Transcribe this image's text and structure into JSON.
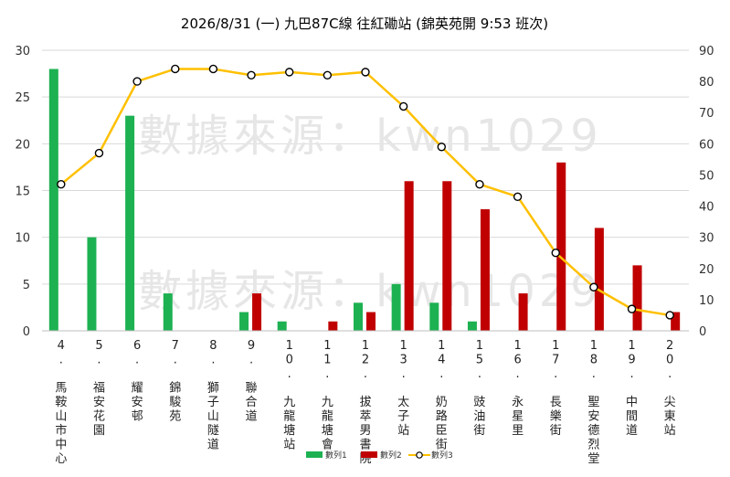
{
  "chart_data": {
    "type": "bar",
    "title": "2026/8/31 (一) 九巴87C線 往紅磡站 (錦英苑開 9:53 班次)",
    "watermark": "數據來源：kwn1029",
    "categories": [
      "4. 馬鞍山市中心",
      "5. 福安花園",
      "6. 耀安邨",
      "7. 錦駿苑",
      "8. 獅子山隧道",
      "9. 聯合道",
      "10. 九龍塘站",
      "11. 九龍塘會",
      "12. 拔萃男書院",
      "13. 太子站",
      "14. 奶路臣街",
      "15. 豉油街",
      "16. 永星里",
      "17. 長樂街",
      "18. 聖安德烈堂",
      "19. 中間道",
      "20. 尖東站"
    ],
    "series": [
      {
        "name": "數列1",
        "type": "bar",
        "axis": "left",
        "color": "#1db152",
        "values": [
          28,
          10,
          23,
          4,
          0,
          2,
          1,
          0,
          3,
          5,
          3,
          1,
          0,
          0,
          0,
          0,
          0
        ]
      },
      {
        "name": "數列2",
        "type": "bar",
        "axis": "left",
        "color": "#c00000",
        "values": [
          0,
          0,
          0,
          0,
          0,
          4,
          0,
          1,
          2,
          16,
          16,
          13,
          4,
          18,
          11,
          7,
          2
        ]
      },
      {
        "name": "數列3",
        "type": "line",
        "axis": "right",
        "color": "#ffc000",
        "values": [
          47,
          57,
          80,
          84,
          84,
          82,
          83,
          82,
          83,
          72,
          59,
          47,
          43,
          25,
          14,
          7,
          5
        ]
      }
    ],
    "ylim_left": [
      0,
      30
    ],
    "yticks_left": [
      "0",
      "5",
      "10",
      "15",
      "20",
      "25",
      "30"
    ],
    "ylim_right": [
      0,
      90
    ],
    "yticks_right": [
      "0",
      "10",
      "20",
      "30",
      "40",
      "50",
      "60",
      "70",
      "80",
      "90"
    ],
    "grid": true,
    "legend_position": "bottom"
  }
}
